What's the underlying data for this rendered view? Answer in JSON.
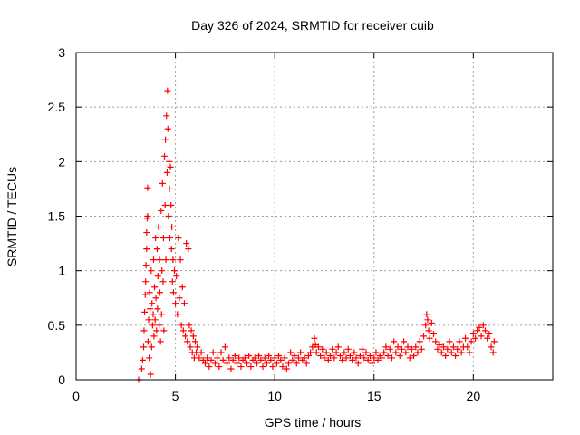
{
  "chart_data": {
    "type": "scatter",
    "title": "Day 326 of 2024, SRMTID for receiver cuib",
    "xlabel": "GPS time / hours",
    "ylabel": "SRMTID / TECUs",
    "xlim": [
      0,
      24
    ],
    "ylim": [
      0,
      3
    ],
    "xticks": [
      0,
      5,
      10,
      15,
      20
    ],
    "xtick_labels": [
      "0",
      "5",
      "10",
      "15",
      "20"
    ],
    "yticks": [
      0,
      0.5,
      1,
      1.5,
      2,
      2.5,
      3
    ],
    "ytick_labels": [
      "0",
      "0.5",
      "1",
      "1.5",
      "2",
      "2.5",
      "3"
    ],
    "grid": true,
    "marker": "+",
    "marker_color": "#ff0000",
    "series": [
      {
        "name": "SRMTID",
        "points": [
          [
            3.15,
            0.0
          ],
          [
            3.3,
            0.1
          ],
          [
            3.35,
            0.18
          ],
          [
            3.4,
            0.3
          ],
          [
            3.42,
            0.45
          ],
          [
            3.45,
            0.62
          ],
          [
            3.48,
            0.78
          ],
          [
            3.5,
            0.9
          ],
          [
            3.52,
            1.05
          ],
          [
            3.55,
            1.2
          ],
          [
            3.55,
            1.35
          ],
          [
            3.58,
            1.48
          ],
          [
            3.6,
            1.5
          ],
          [
            3.6,
            1.76
          ],
          [
            3.62,
            0.35
          ],
          [
            3.65,
            0.55
          ],
          [
            3.68,
            0.2
          ],
          [
            3.7,
            0.8
          ],
          [
            3.72,
            0.65
          ],
          [
            3.75,
            0.05
          ],
          [
            3.78,
            1.0
          ],
          [
            3.8,
            0.3
          ],
          [
            3.82,
            0.7
          ],
          [
            3.85,
            0.5
          ],
          [
            3.88,
            0.6
          ],
          [
            3.9,
            1.1
          ],
          [
            3.92,
            0.4
          ],
          [
            3.95,
            0.85
          ],
          [
            3.98,
            0.55
          ],
          [
            4.0,
            1.3
          ],
          [
            4.02,
            0.75
          ],
          [
            4.05,
            0.45
          ],
          [
            4.08,
            1.2
          ],
          [
            4.1,
            0.65
          ],
          [
            4.12,
            0.95
          ],
          [
            4.15,
            1.4
          ],
          [
            4.18,
            0.5
          ],
          [
            4.2,
            1.1
          ],
          [
            4.22,
            0.8
          ],
          [
            4.25,
            0.35
          ],
          [
            4.28,
            1.55
          ],
          [
            4.3,
            0.6
          ],
          [
            4.32,
            1.0
          ],
          [
            4.35,
            1.8
          ],
          [
            4.38,
            0.9
          ],
          [
            4.4,
            1.3
          ],
          [
            4.42,
            0.45
          ],
          [
            4.45,
            2.05
          ],
          [
            4.48,
            1.6
          ],
          [
            4.5,
            2.2
          ],
          [
            4.52,
            1.1
          ],
          [
            4.55,
            2.42
          ],
          [
            4.58,
            1.9
          ],
          [
            4.6,
            2.65
          ],
          [
            4.62,
            2.3
          ],
          [
            4.65,
            1.5
          ],
          [
            4.68,
            2.0
          ],
          [
            4.7,
            1.75
          ],
          [
            4.72,
            1.3
          ],
          [
            4.75,
            1.95
          ],
          [
            4.78,
            1.6
          ],
          [
            4.8,
            1.2
          ],
          [
            4.82,
            1.4
          ],
          [
            4.85,
            0.9
          ],
          [
            4.88,
            1.1
          ],
          [
            4.9,
            0.8
          ],
          [
            4.95,
            1.0
          ],
          [
            5.0,
            0.7
          ],
          [
            5.05,
            0.95
          ],
          [
            5.1,
            0.6
          ],
          [
            5.15,
            1.3
          ],
          [
            5.2,
            0.75
          ],
          [
            5.25,
            1.1
          ],
          [
            5.3,
            0.5
          ],
          [
            5.35,
            0.85
          ],
          [
            5.4,
            0.45
          ],
          [
            5.45,
            0.7
          ],
          [
            5.5,
            0.4
          ],
          [
            5.55,
            1.25
          ],
          [
            5.6,
            0.35
          ],
          [
            5.65,
            1.2
          ],
          [
            5.7,
            0.5
          ],
          [
            5.75,
            0.3
          ],
          [
            5.8,
            0.45
          ],
          [
            5.85,
            0.25
          ],
          [
            5.9,
            0.4
          ],
          [
            5.95,
            0.2
          ],
          [
            6.0,
            0.35
          ],
          [
            6.05,
            0.25
          ],
          [
            6.1,
            0.3
          ],
          [
            6.2,
            0.2
          ],
          [
            6.3,
            0.25
          ],
          [
            6.4,
            0.18
          ],
          [
            6.5,
            0.15
          ],
          [
            6.6,
            0.2
          ],
          [
            6.7,
            0.12
          ],
          [
            6.8,
            0.18
          ],
          [
            6.9,
            0.25
          ],
          [
            7.0,
            0.15
          ],
          [
            7.1,
            0.2
          ],
          [
            7.2,
            0.12
          ],
          [
            7.3,
            0.25
          ],
          [
            7.4,
            0.18
          ],
          [
            7.5,
            0.3
          ],
          [
            7.6,
            0.15
          ],
          [
            7.7,
            0.2
          ],
          [
            7.8,
            0.1
          ],
          [
            7.9,
            0.18
          ],
          [
            8.0,
            0.22
          ],
          [
            8.1,
            0.15
          ],
          [
            8.2,
            0.2
          ],
          [
            8.3,
            0.12
          ],
          [
            8.4,
            0.18
          ],
          [
            8.5,
            0.2
          ],
          [
            8.6,
            0.15
          ],
          [
            8.7,
            0.22
          ],
          [
            8.8,
            0.12
          ],
          [
            8.9,
            0.18
          ],
          [
            9.0,
            0.2
          ],
          [
            9.1,
            0.15
          ],
          [
            9.2,
            0.22
          ],
          [
            9.3,
            0.18
          ],
          [
            9.4,
            0.12
          ],
          [
            9.5,
            0.2
          ],
          [
            9.6,
            0.15
          ],
          [
            9.7,
            0.22
          ],
          [
            9.8,
            0.18
          ],
          [
            9.9,
            0.12
          ],
          [
            10.0,
            0.2
          ],
          [
            10.1,
            0.15
          ],
          [
            10.2,
            0.22
          ],
          [
            10.3,
            0.18
          ],
          [
            10.4,
            0.12
          ],
          [
            10.5,
            0.2
          ],
          [
            10.6,
            0.1
          ],
          [
            10.7,
            0.15
          ],
          [
            10.8,
            0.25
          ],
          [
            10.9,
            0.18
          ],
          [
            11.0,
            0.22
          ],
          [
            11.1,
            0.15
          ],
          [
            11.2,
            0.2
          ],
          [
            11.3,
            0.25
          ],
          [
            11.4,
            0.18
          ],
          [
            11.5,
            0.2
          ],
          [
            11.6,
            0.15
          ],
          [
            11.7,
            0.22
          ],
          [
            11.8,
            0.25
          ],
          [
            11.9,
            0.3
          ],
          [
            12.0,
            0.38
          ],
          [
            12.05,
            0.32
          ],
          [
            12.1,
            0.25
          ],
          [
            12.2,
            0.3
          ],
          [
            12.3,
            0.22
          ],
          [
            12.4,
            0.28
          ],
          [
            12.5,
            0.2
          ],
          [
            12.6,
            0.25
          ],
          [
            12.7,
            0.18
          ],
          [
            12.8,
            0.22
          ],
          [
            12.9,
            0.28
          ],
          [
            13.0,
            0.2
          ],
          [
            13.1,
            0.25
          ],
          [
            13.2,
            0.3
          ],
          [
            13.3,
            0.22
          ],
          [
            13.4,
            0.18
          ],
          [
            13.5,
            0.25
          ],
          [
            13.6,
            0.2
          ],
          [
            13.7,
            0.28
          ],
          [
            13.8,
            0.22
          ],
          [
            13.9,
            0.18
          ],
          [
            14.0,
            0.25
          ],
          [
            14.1,
            0.2
          ],
          [
            14.2,
            0.15
          ],
          [
            14.3,
            0.22
          ],
          [
            14.4,
            0.28
          ],
          [
            14.5,
            0.2
          ],
          [
            14.6,
            0.25
          ],
          [
            14.7,
            0.18
          ],
          [
            14.8,
            0.22
          ],
          [
            14.9,
            0.15
          ],
          [
            15.0,
            0.2
          ],
          [
            15.1,
            0.25
          ],
          [
            15.2,
            0.18
          ],
          [
            15.3,
            0.22
          ],
          [
            15.4,
            0.2
          ],
          [
            15.5,
            0.25
          ],
          [
            15.6,
            0.3
          ],
          [
            15.7,
            0.22
          ],
          [
            15.8,
            0.28
          ],
          [
            15.9,
            0.2
          ],
          [
            16.0,
            0.35
          ],
          [
            16.1,
            0.25
          ],
          [
            16.2,
            0.3
          ],
          [
            16.3,
            0.22
          ],
          [
            16.4,
            0.28
          ],
          [
            16.5,
            0.35
          ],
          [
            16.6,
            0.25
          ],
          [
            16.7,
            0.3
          ],
          [
            16.8,
            0.2
          ],
          [
            16.9,
            0.28
          ],
          [
            17.0,
            0.22
          ],
          [
            17.1,
            0.3
          ],
          [
            17.2,
            0.25
          ],
          [
            17.3,
            0.35
          ],
          [
            17.4,
            0.28
          ],
          [
            17.5,
            0.4
          ],
          [
            17.6,
            0.5
          ],
          [
            17.65,
            0.6
          ],
          [
            17.7,
            0.55
          ],
          [
            17.75,
            0.45
          ],
          [
            17.8,
            0.38
          ],
          [
            17.9,
            0.52
          ],
          [
            18.0,
            0.42
          ],
          [
            18.1,
            0.35
          ],
          [
            18.2,
            0.28
          ],
          [
            18.3,
            0.32
          ],
          [
            18.4,
            0.25
          ],
          [
            18.5,
            0.3
          ],
          [
            18.6,
            0.22
          ],
          [
            18.7,
            0.28
          ],
          [
            18.8,
            0.35
          ],
          [
            18.9,
            0.25
          ],
          [
            19.0,
            0.3
          ],
          [
            19.1,
            0.22
          ],
          [
            19.2,
            0.28
          ],
          [
            19.3,
            0.35
          ],
          [
            19.4,
            0.25
          ],
          [
            19.5,
            0.3
          ],
          [
            19.6,
            0.38
          ],
          [
            19.7,
            0.3
          ],
          [
            19.8,
            0.25
          ],
          [
            19.9,
            0.35
          ],
          [
            20.0,
            0.42
          ],
          [
            20.1,
            0.38
          ],
          [
            20.2,
            0.45
          ],
          [
            20.3,
            0.48
          ],
          [
            20.4,
            0.4
          ],
          [
            20.5,
            0.5
          ],
          [
            20.6,
            0.45
          ],
          [
            20.7,
            0.38
          ],
          [
            20.8,
            0.42
          ],
          [
            20.9,
            0.3
          ],
          [
            21.0,
            0.25
          ],
          [
            21.05,
            0.35
          ]
        ]
      }
    ]
  }
}
